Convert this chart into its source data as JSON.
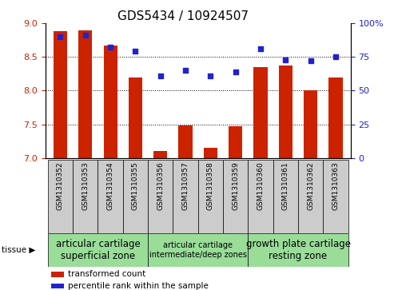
{
  "title": "GDS5434 / 10924507",
  "samples": [
    "GSM1310352",
    "GSM1310353",
    "GSM1310354",
    "GSM1310355",
    "GSM1310356",
    "GSM1310357",
    "GSM1310358",
    "GSM1310359",
    "GSM1310360",
    "GSM1310361",
    "GSM1310362",
    "GSM1310363"
  ],
  "bar_values": [
    8.88,
    8.89,
    8.67,
    8.19,
    7.1,
    7.48,
    7.15,
    7.47,
    8.35,
    8.37,
    8.0,
    8.19
  ],
  "dot_values": [
    90,
    91,
    82,
    79,
    61,
    65,
    61,
    64,
    81,
    73,
    72,
    75
  ],
  "ylim_left": [
    7.0,
    9.0
  ],
  "ylim_right": [
    0,
    100
  ],
  "yticks_left": [
    7.0,
    7.5,
    8.0,
    8.5,
    9.0
  ],
  "yticks_right": [
    0,
    25,
    50,
    75,
    100
  ],
  "yticklabels_right": [
    "0",
    "25",
    "50",
    "75",
    "100%"
  ],
  "bar_color": "#cc2200",
  "dot_color": "#2222cc",
  "bar_bottom": 7.0,
  "groups": [
    {
      "label": "articular cartilage\nsuperficial zone",
      "indices": [
        0,
        1,
        2,
        3
      ],
      "color": "#99dd99",
      "fontsize": 8.5
    },
    {
      "label": "articular cartilage\nintermediate/deep zones",
      "indices": [
        4,
        5,
        6,
        7
      ],
      "color": "#99dd99",
      "fontsize": 7.0
    },
    {
      "label": "growth plate cartilage\nresting zone",
      "indices": [
        8,
        9,
        10,
        11
      ],
      "color": "#99dd99",
      "fontsize": 8.5
    }
  ],
  "tissue_label": "tissue ▶",
  "legend_items": [
    {
      "color": "#cc2200",
      "label": "transformed count"
    },
    {
      "color": "#2222cc",
      "label": "percentile rank within the sample"
    }
  ],
  "tick_label_color_left": "#cc2200",
  "tick_label_color_right": "#2222cc",
  "title_fontsize": 11,
  "xtick_bg_color": "#cccccc",
  "grid_yticks": [
    7.5,
    8.0,
    8.5
  ]
}
